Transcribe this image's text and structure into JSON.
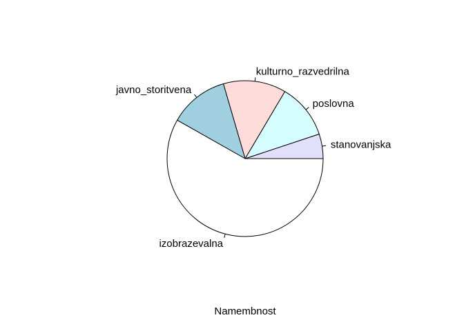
{
  "chart_data": {
    "type": "pie",
    "slices": [
      {
        "label": "stanovanjska",
        "value": 0.051,
        "color": "#e0e0fa"
      },
      {
        "label": "poslovna",
        "value": 0.114,
        "color": "#d7fefe"
      },
      {
        "label": "kulturno_razvedrilna",
        "value": 0.13,
        "color": "#fedcda"
      },
      {
        "label": "javno_storitvena",
        "value": 0.123,
        "color": "#a0cfe0"
      },
      {
        "label": "izobrazevalna",
        "value": 0.582,
        "color": "#ffffff"
      }
    ],
    "xlabel": "Namembnost",
    "start": "3 o'clock",
    "direction": "counterclockwise"
  }
}
